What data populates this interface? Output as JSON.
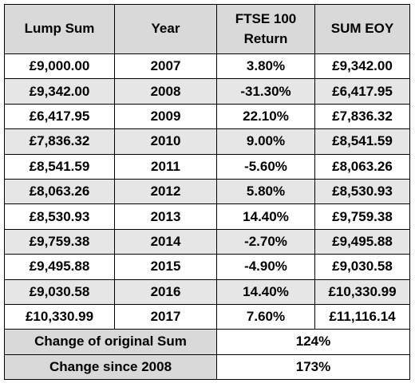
{
  "table": {
    "headers": [
      "Lump Sum",
      "Year",
      "FTSE 100 Return",
      "SUM EOY"
    ],
    "rows": [
      [
        "£9,000.00",
        "2007",
        "3.80%",
        "£9,342.00"
      ],
      [
        "£9,342.00",
        "2008",
        "-31.30%",
        "£6,417.95"
      ],
      [
        "£6,417.95",
        "2009",
        "22.10%",
        "£7,836.32"
      ],
      [
        "£7,836.32",
        "2010",
        "9.00%",
        "£8,541.59"
      ],
      [
        "£8,541.59",
        "2011",
        "-5.60%",
        "£8,063.26"
      ],
      [
        "£8,063.26",
        "2012",
        "5.80%",
        "£8,530.93"
      ],
      [
        "£8,530.93",
        "2013",
        "14.40%",
        "£9,759.38"
      ],
      [
        "£9,759.38",
        "2014",
        "-2.70%",
        "£9,495.88"
      ],
      [
        "£9,495.88",
        "2015",
        "-4.90%",
        "£9,030.58"
      ],
      [
        "£9,030.58",
        "2016",
        "14.40%",
        "£10,330.99"
      ],
      [
        "£10,330.99",
        "2017",
        "7.60%",
        "£11,116.14"
      ]
    ],
    "summary": [
      {
        "label": "Change of original Sum",
        "value": "124%"
      },
      {
        "label": "Change since 2008",
        "value": "173%"
      }
    ]
  }
}
